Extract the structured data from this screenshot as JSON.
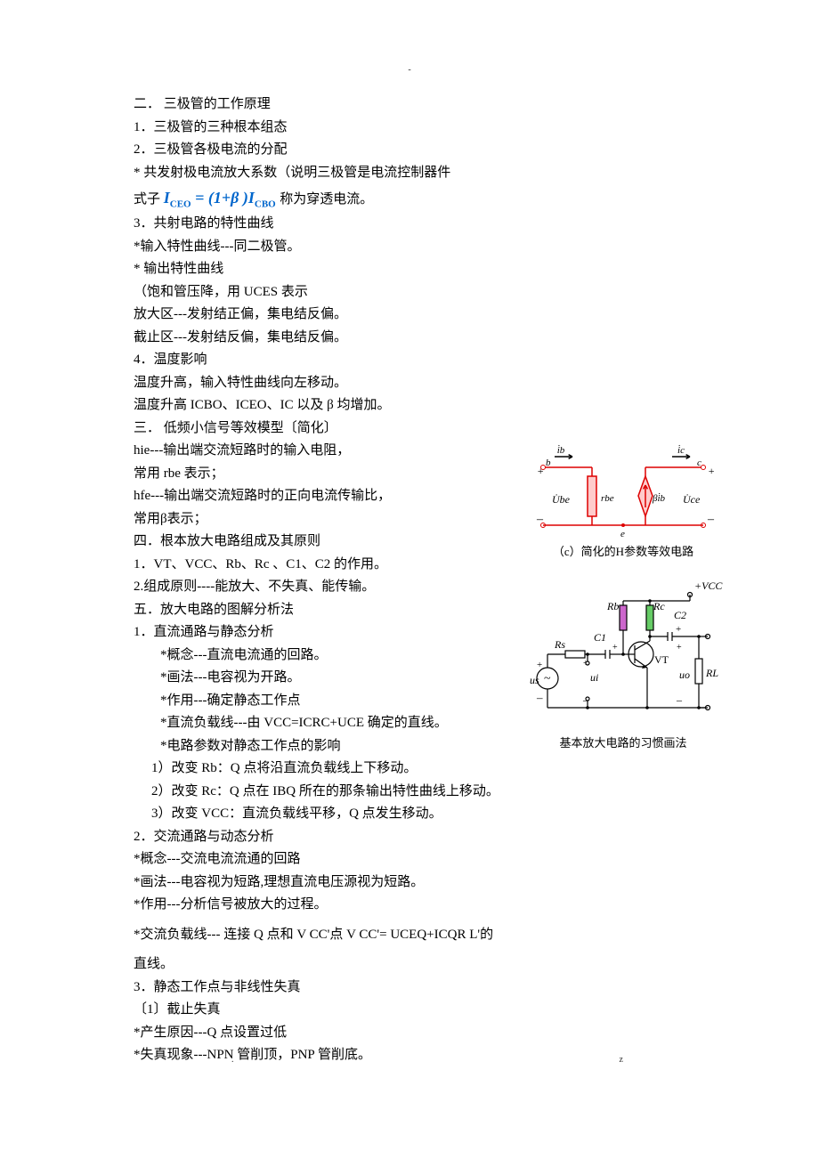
{
  "header_dash": "-",
  "footer_left": ".",
  "footer_right": "z",
  "lines": {
    "l01": "二．  三极管的工作原理",
    "l02": "1．三极管的三种根本组态",
    "l03": "2．三极管各极电流的分配",
    "l04": "* 共发射极电流放大系数（说明三极管是电流控制器件",
    "l05a": "式子",
    "l05b": "称为穿透电流。",
    "l06": "3．共射电路的特性曲线",
    "l07": "*输入特性曲线---同二极管。",
    "l08": "* 输出特性曲线",
    "l09": "（饱和管压降，用 UCES 表示",
    "l10": "放大区---发射结正偏，集电结反偏。",
    "l11": "截止区---发射结反偏，集电结反偏。",
    "l12": "4．温度影响",
    "l13": "温度升高，输入特性曲线向左移动。",
    "l14": "温度升高 ICBO、ICEO、IC 以及 β 均增加。",
    "l15": "三．  低频小信号等效模型〔简化〕",
    "l16": "hie---输出端交流短路时的输入电阻，",
    "l17": "常用 rbe 表示；",
    "l18": "hfe---输出端交流短路时的正向电流传输比，",
    "l19": "常用β表示；",
    "l20": "四．根本放大电路组成及其原则",
    "l21": "1．VT、VCC、Rb、Rc 、C1、C2 的作用。",
    "l22": "2.组成原则----能放大、不失真、能传输。",
    "l23": "五．放大电路的图解分析法",
    "l24": "1．直流通路与静态分析",
    "l25": "*概念---直流电流通的回路。",
    "l26": "*画法---电容视为开路。",
    "l27": "*作用---确定静态工作点",
    "l28": "*直流负载线---由 VCC=ICRC+UCE 确定的直线。",
    "l29": "*电路参数对静态工作点的影响",
    "l30": "1）改变 Rb：Q 点将沿直流负载线上下移动。",
    "l31": "2）改变 Rc：Q 点在 IBQ 所在的那条输出特性曲线上移动。",
    "l32": "3）改变 VCC：直流负载线平移，Q 点发生移动。",
    "l33": "2．交流通路与动态分析",
    "l34": "*概念---交流电流流通的回路",
    "l35": "*画法---电容视为短路,理想直流电压源视为短路。",
    "l36": "*作用---分析信号被放大的过程。",
    "l37": "*交流负载线--- 连接 Q 点和 V CC'点 V CC'= UCEQ+ICQR L'的",
    "l38": "直线。",
    "l39": "3．静态工作点与非线性失真",
    "l40": "〔1〕截止失真",
    "l41": "*产生原因---Q 点设置过低",
    "l42": "*失真现象---NPN 管削顶，PNP 管削底。"
  },
  "formula": {
    "lhs": "I",
    "lhs_sub": "CEO",
    "eq": " = (1+β )",
    "rhs": "I",
    "rhs_sub": "CBO"
  },
  "diagram1": {
    "caption": "（c）简化的H参数等效电路",
    "labels": {
      "ib": "i̇b",
      "ic": "i̇c",
      "b": "b",
      "c": "c",
      "plus": "+",
      "minus": "–",
      "ube": "U̇be",
      "rbe": "rbe",
      "bib": "βi̇b",
      "uce": "U̇ce",
      "e": "e"
    },
    "colors": {
      "wire": "#dd0000",
      "fill_rbe": "#ffcccc",
      "fill_src": "#ffcccc",
      "text": "#000000"
    }
  },
  "diagram2": {
    "caption": "基本放大电路的习惯画法",
    "labels": {
      "vcc": "+VCC",
      "rb": "Rb",
      "rc": "Rc",
      "c2": "C2",
      "c1": "C1",
      "rs": "Rs",
      "ui": "ui",
      "us": "us",
      "uo": "uo",
      "rl": "RL",
      "vt": "VT",
      "plus": "+",
      "minus": "–"
    },
    "colors": {
      "wire": "#000000",
      "rb_fill": "#cc66cc",
      "rc_fill": "#66cc66",
      "text": "#000000"
    }
  }
}
